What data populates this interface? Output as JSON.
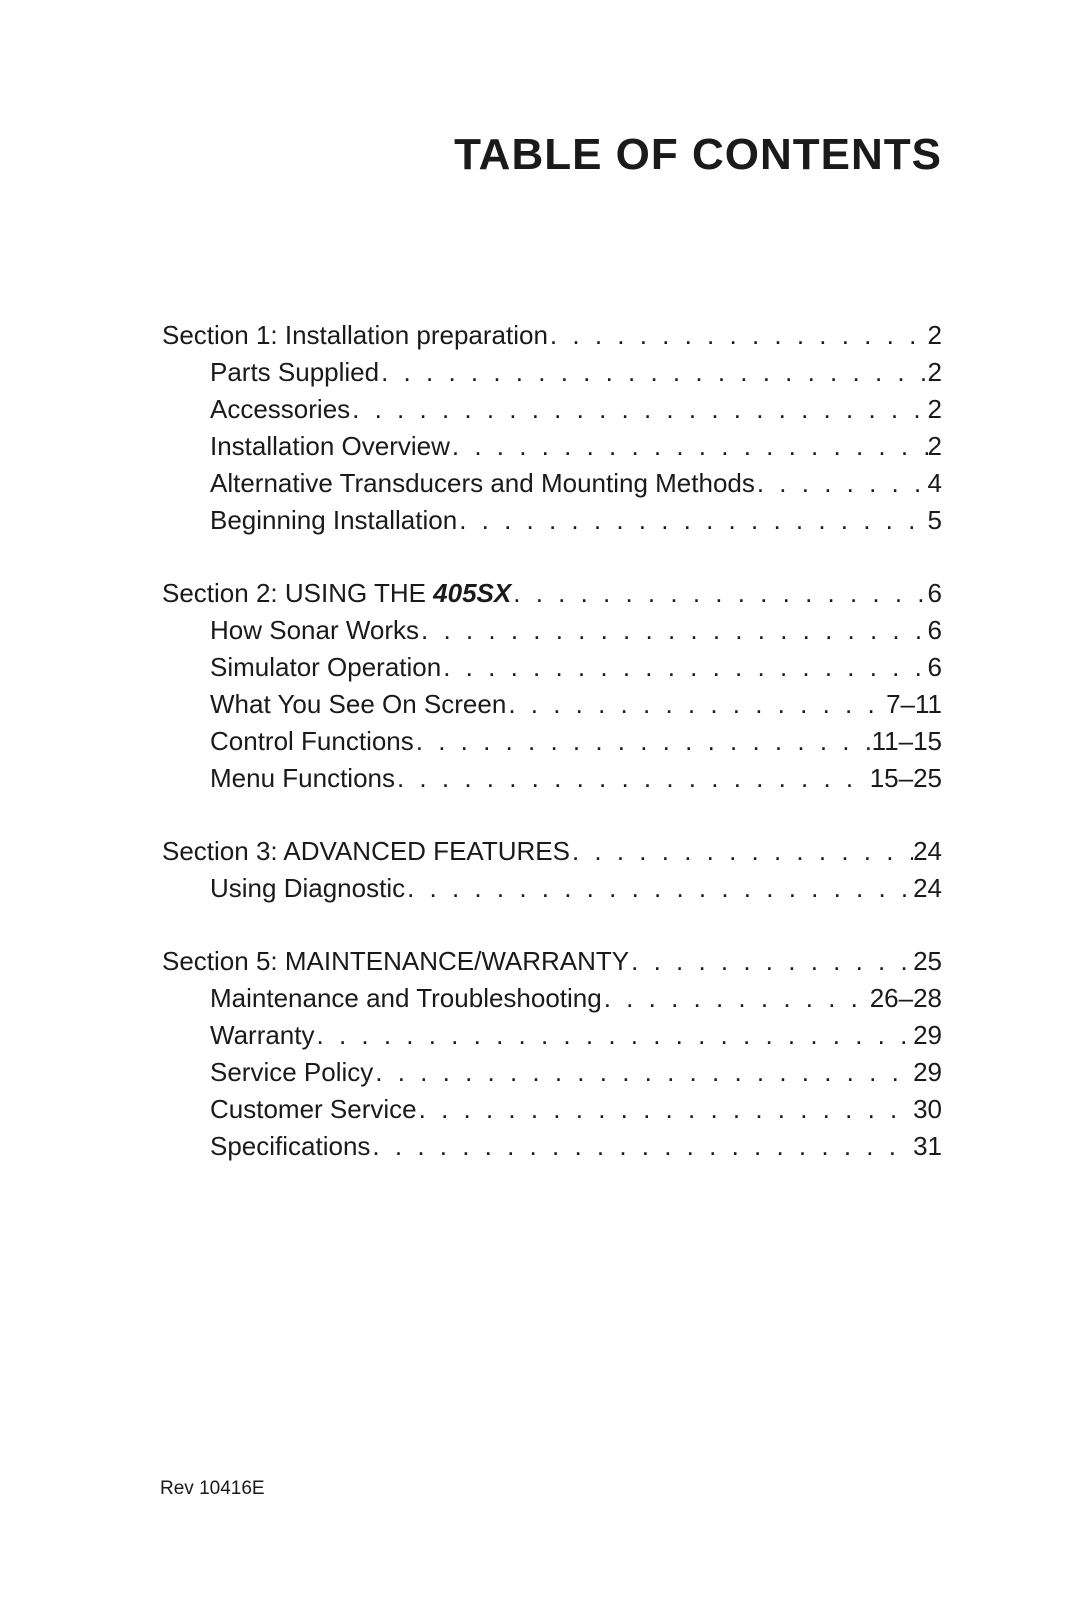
{
  "title": "TABLE OF CONTENTS",
  "colors": {
    "text": "#1a1a1a",
    "background": "#ffffff"
  },
  "typography": {
    "title_fontsize": 44,
    "title_weight": 900,
    "body_fontsize": 26,
    "body_weight": 300,
    "footer_fontsize": 19
  },
  "sections": [
    {
      "heading": {
        "label": "Section 1: Installation preparation",
        "page": "2"
      },
      "items": [
        {
          "label": "Parts Supplied",
          "page": "2"
        },
        {
          "label": "Accessories",
          "page": "2"
        },
        {
          "label": "Installation Overview",
          "page": "2"
        },
        {
          "label": "Alternative Transducers and Mounting Methods",
          "page": "4"
        },
        {
          "label": "Beginning Installation",
          "page": "5"
        }
      ]
    },
    {
      "heading": {
        "label_prefix": "Section 2: USING THE ",
        "label_emphasis": "405SX",
        "page": "6"
      },
      "items": [
        {
          "label": "How Sonar Works",
          "page": "6"
        },
        {
          "label": "Simulator Operation",
          "page": "6"
        },
        {
          "label": "What You See On Screen",
          "page": "7–11"
        },
        {
          "label": "Control Functions",
          "page": "11–15"
        },
        {
          "label": "Menu Functions",
          "page": "15–25"
        }
      ]
    },
    {
      "heading": {
        "label": "Section 3: ADVANCED FEATURES",
        "page": "24"
      },
      "items": [
        {
          "label": "Using Diagnostic",
          "page": "24"
        }
      ]
    },
    {
      "heading": {
        "label": "Section 5: MAINTENANCE/WARRANTY",
        "page": "25"
      },
      "items": [
        {
          "label": "Maintenance and Troubleshooting",
          "page": "26–28"
        },
        {
          "label": "Warranty",
          "page": "29"
        },
        {
          "label": "Service Policy",
          "page": "29"
        },
        {
          "label": "Customer Service",
          "page": "30"
        },
        {
          "label": "Specifications",
          "page": "31"
        }
      ]
    }
  ],
  "footer": "Rev 10416E"
}
